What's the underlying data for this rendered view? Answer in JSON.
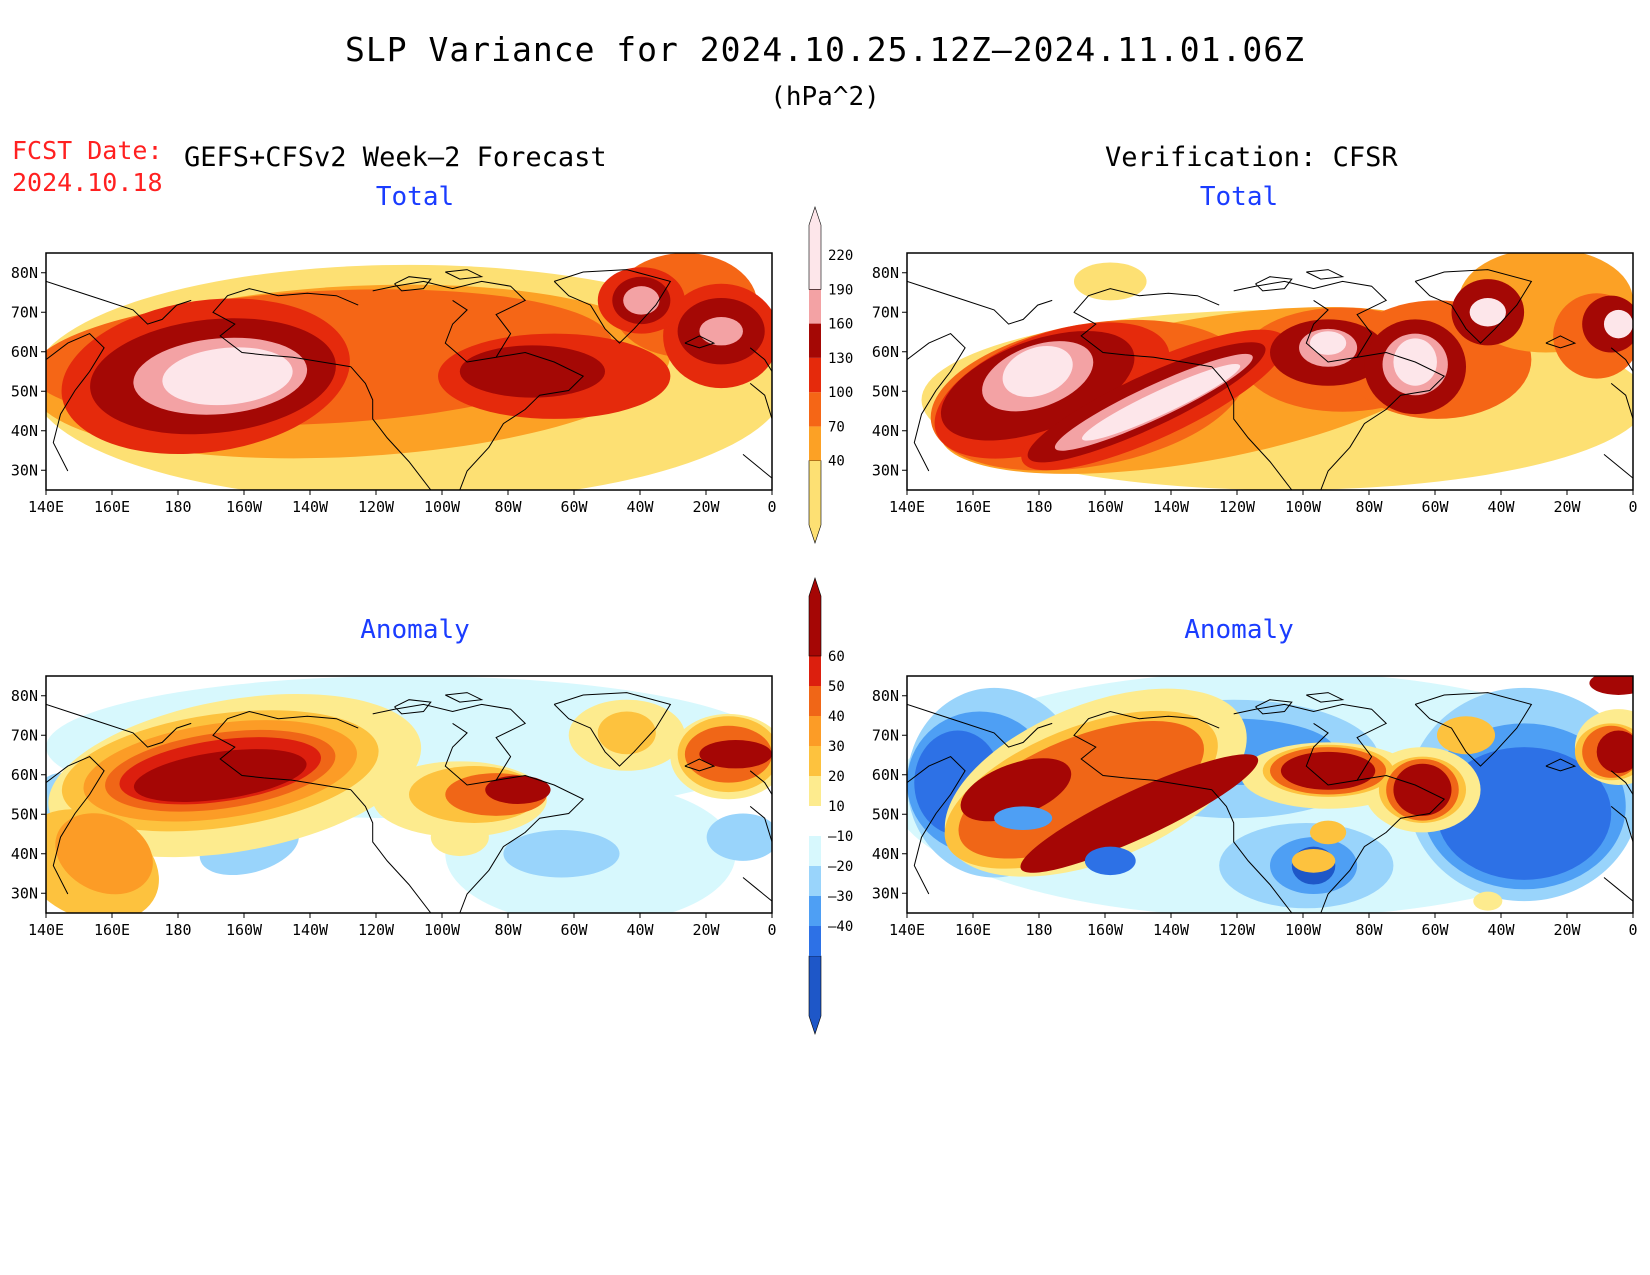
{
  "title": "SLP Variance for 2024.10.25.12Z–2024.11.01.06Z",
  "units": "(hPa^2)",
  "forecast": {
    "label": "FCST Date:",
    "date": "2024.10.18"
  },
  "left_header": "GEFS+CFSv2 Week–2 Forecast",
  "right_header": "Verification: CFSR",
  "panels": [
    {
      "id": "fcst-total",
      "title": "Total"
    },
    {
      "id": "verif-total",
      "title": "Total"
    },
    {
      "id": "fcst-anomaly",
      "title": "Anomaly"
    },
    {
      "id": "verif-anomaly",
      "title": "Anomaly"
    }
  ],
  "axes": {
    "lon_labels": [
      "140E",
      "160E",
      "180",
      "160W",
      "140W",
      "120W",
      "100W",
      "80W",
      "60W",
      "40W",
      "20W",
      "0"
    ],
    "lat_labels": [
      "80N",
      "70N",
      "60N",
      "50N",
      "40N",
      "30N"
    ],
    "lon_range": [
      "140E",
      "0"
    ],
    "lat_range": [
      "25N",
      "85N"
    ]
  },
  "colorbars": {
    "total": {
      "levels": [
        "40",
        "70",
        "100",
        "130",
        "160",
        "190",
        "220"
      ],
      "colors": [
        "#fde073",
        "#fca125",
        "#f56616",
        "#e52a0c",
        "#a40805",
        "#f3a2a4",
        "#fde6ea"
      ]
    },
    "anomaly": {
      "levels": [
        "60",
        "50",
        "40",
        "30",
        "20",
        "10",
        "–10",
        "–20",
        "–30",
        "–40"
      ],
      "colors": [
        "#a50605",
        "#dc1f0e",
        "#f06617",
        "#fc9c26",
        "#fdc23e",
        "#fdeb8e",
        "#ffffff",
        "#d7f8fd",
        "#99d4fb",
        "#4e9ff4",
        "#2d71e6",
        "#1e57c8"
      ]
    }
  },
  "chart_data": [
    {
      "type": "heatmap",
      "title": "Total",
      "subtitle": "GEFS+CFSv2 Week–2 Forecast",
      "units": "hPa^2",
      "levels": [
        40,
        70,
        100,
        130,
        160,
        190,
        220
      ],
      "maxima": [
        {
          "location": "near 180 / 55N",
          "value_range": ">220"
        },
        {
          "location": "near 40W / 73N",
          "value_range": ">190"
        },
        {
          "location": "near 10W / 65N",
          "value_range": ">190"
        },
        {
          "location": "near 70W / 55N",
          "value_range": "160-190"
        }
      ]
    },
    {
      "type": "heatmap",
      "title": "Total",
      "subtitle": "Verification: CFSR",
      "units": "hPa^2",
      "levels": [
        40,
        70,
        100,
        130,
        160,
        190,
        220
      ],
      "maxima": [
        {
          "location": "near 170E / 53N",
          "value_range": ">220"
        },
        {
          "location": "near 170W-140W / 45N",
          "value_range": ">220"
        },
        {
          "location": "near 95W / 62N",
          "value_range": ">220"
        },
        {
          "location": "near 65W / 55N",
          "value_range": ">220"
        },
        {
          "location": "near 40W / 70N",
          "value_range": ">190"
        },
        {
          "location": "near 0 / 62N",
          "value_range": ">220"
        }
      ]
    },
    {
      "type": "heatmap",
      "title": "Anomaly",
      "subtitle": "GEFS+CFSv2 Week–2 Forecast",
      "units": "hPa^2",
      "levels": [
        -40,
        -30,
        -20,
        -10,
        10,
        20,
        30,
        40,
        50,
        60
      ],
      "maxima": [
        {
          "location": "near 170W / 60N",
          "value_range": ">60"
        },
        {
          "location": "near 75W / 57N",
          "value_range": "50-60"
        },
        {
          "location": "near 10W / 65N",
          "value_range": "50-60"
        }
      ],
      "minima": [
        {
          "location": "near 160W / 45N",
          "value_range": "-20 to -30"
        },
        {
          "location": "near 65W / 40N",
          "value_range": "-20 to -30"
        }
      ]
    },
    {
      "type": "heatmap",
      "title": "Anomaly",
      "subtitle": "Verification: CFSR",
      "units": "hPa^2",
      "levels": [
        -40,
        -30,
        -20,
        -10,
        10,
        20,
        30,
        40,
        50,
        60
      ],
      "maxima": [
        {
          "location": "near 175E / 55N",
          "value_range": ">60"
        },
        {
          "location": "near 160W-140W / 45N",
          "value_range": ">60"
        },
        {
          "location": "near 95W / 62N",
          "value_range": ">60"
        },
        {
          "location": "near 70W / 58N",
          "value_range": ">60"
        },
        {
          "location": "near 0 / 65N",
          "value_range": ">60"
        }
      ],
      "minima": [
        {
          "location": "near 30W / 45N",
          "value_range": "<-40"
        },
        {
          "location": "near 160W / 37N",
          "value_range": "<-40"
        }
      ]
    }
  ]
}
